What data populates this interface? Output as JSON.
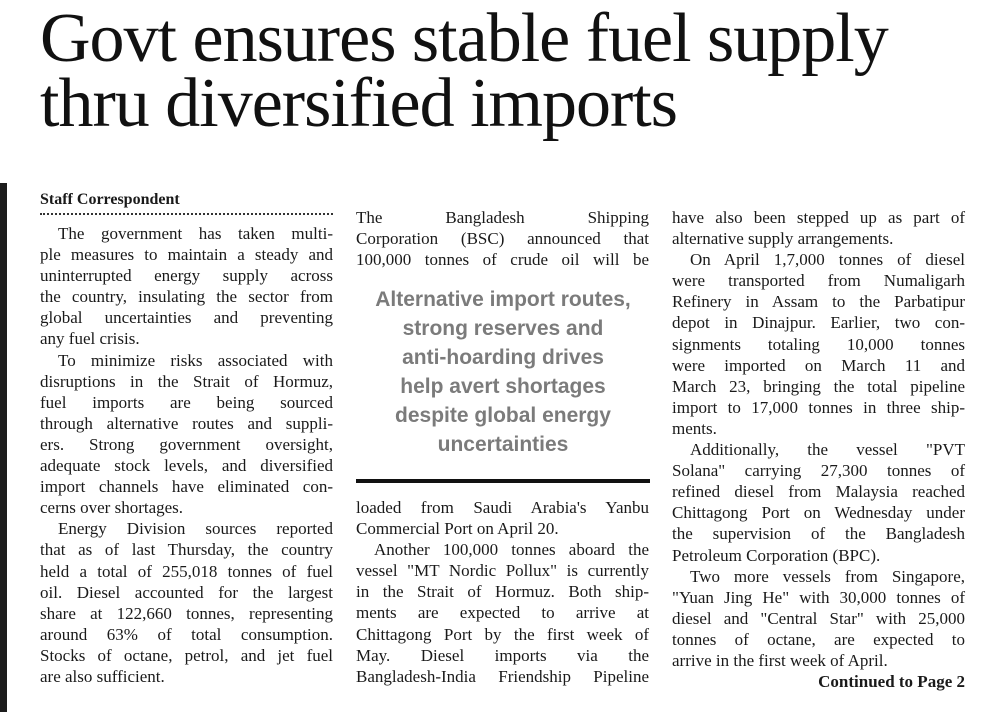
{
  "headline": [
    "Govt ensures stable fuel supply",
    "thru diversified imports"
  ],
  "byline": "Staff Correspondent",
  "pull_quote": [
    "Alternative import routes,",
    "strong reserves and",
    "anti-hoarding drives",
    "help avert shortages",
    "despite global energy",
    "uncertainties"
  ],
  "columns": {
    "col1": [
      [
        "The government has taken multi-",
        "ple measures to maintain a steady and",
        "uninterrupted energy supply across",
        "the country, insulating the sector from",
        "global uncertainties and preventing",
        "any fuel crisis."
      ],
      [
        "To minimize risks associated with",
        "disruptions in the Strait of Hormuz,",
        "fuel imports are being sourced",
        "through alternative routes and suppli-",
        "ers. Strong government oversight,",
        "adequate stock levels, and diversified",
        "import channels have eliminated con-",
        "cerns over shortages."
      ],
      [
        "Energy Division sources reported",
        "that as of last Thursday, the country",
        "held a total of 255,018 tonnes of fuel",
        "oil. Diesel accounted for the largest",
        "share at 122,660 tonnes, representing",
        "around 63% of total consumption.",
        "Stocks of octane, petrol, and jet fuel",
        "are also sufficient."
      ]
    ],
    "col2_top": [
      [
        "The Bangladesh Shipping",
        "Corporation (BSC) announced that",
        "100,000 tonnes of crude oil will be"
      ]
    ],
    "col2_bottom": [
      [
        "loaded from Saudi Arabia's Yanbu",
        "Commercial Port on April 20."
      ],
      [
        "Another 100,000 tonnes aboard the",
        "vessel \"MT Nordic Pollux\" is currently",
        "in the Strait of Hormuz. Both ship-",
        "ments are expected to arrive at",
        "Chittagong Port by the first week of",
        "May. Diesel imports via the",
        "Bangladesh-India Friendship Pipeline"
      ]
    ],
    "col3": [
      [
        "have also been stepped up as part of",
        "alternative supply arrangements."
      ],
      [
        "On April 1,7,000 tonnes of diesel",
        "were transported from Numaligarh",
        "Refinery in Assam to the Parbatipur",
        "depot in Dinajpur. Earlier, two con-",
        "signments totaling 10,000 tonnes",
        "were imported on March 11 and",
        "March 23, bringing the total pipeline",
        "import to 17,000 tonnes in three ship-",
        "ments."
      ],
      [
        "Additionally, the vessel \"PVT",
        "Solana\" carrying 27,300 tonnes of",
        "refined diesel from Malaysia reached",
        "Chittagong Port on Wednesday under",
        "the supervision of the Bangladesh",
        "Petroleum Corporation (BPC)."
      ],
      [
        "Two more vessels from Singapore,",
        "\"Yuan Jing He\" with 30,000 tonnes of",
        "diesel and \"Central Star\" with 25,000",
        "tonnes of octane, are expected to",
        "arrive in the first week of April."
      ]
    ]
  },
  "continued": "Continued to Page 2"
}
